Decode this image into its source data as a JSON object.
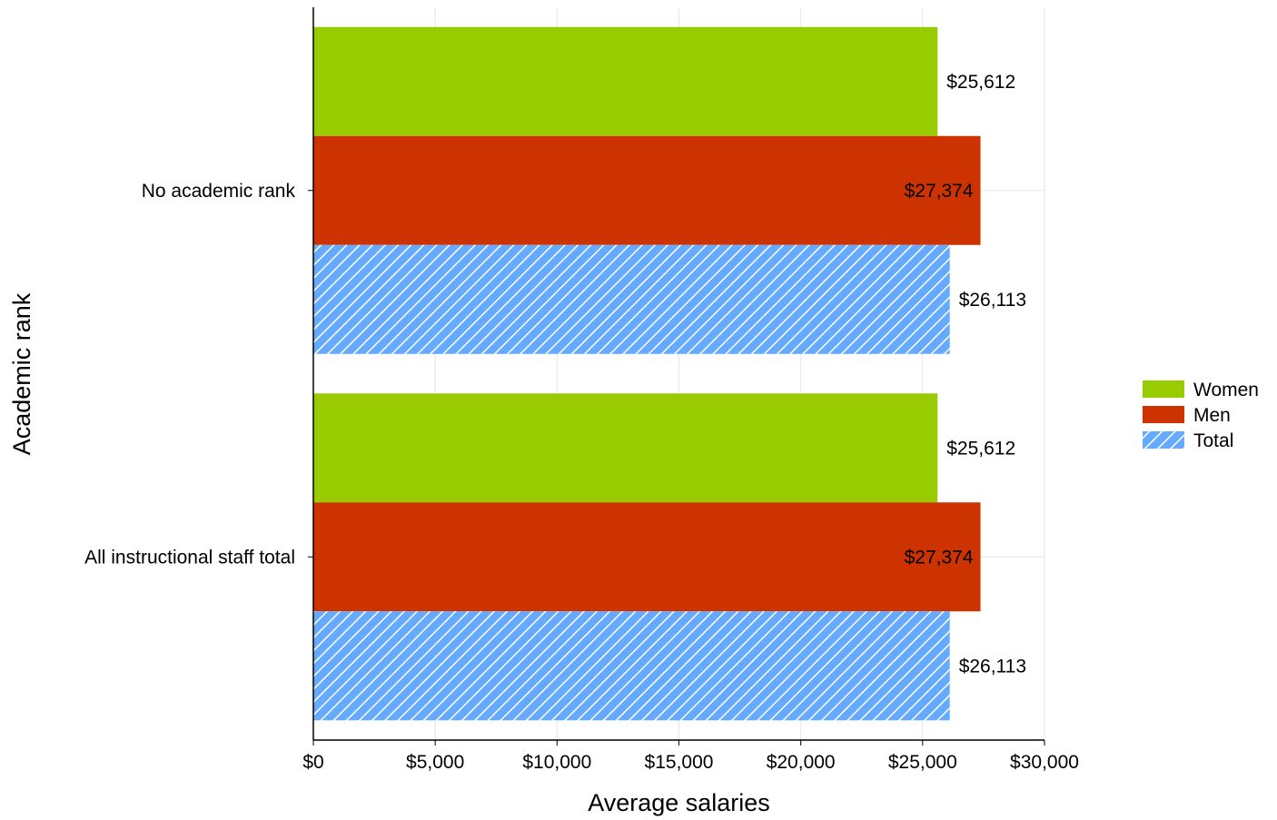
{
  "chart_data": {
    "type": "bar",
    "orientation": "horizontal",
    "categories": [
      "No academic rank",
      "All instructional staff total"
    ],
    "series": [
      {
        "name": "Women",
        "color": "#99cc00",
        "pattern": "solid",
        "values": [
          25612,
          25612
        ],
        "labels": [
          "$25,612",
          "$25,612"
        ]
      },
      {
        "name": "Men",
        "color": "#cc3300",
        "pattern": "solid",
        "values": [
          27374,
          27374
        ],
        "labels": [
          "$27,374",
          "$27,374"
        ]
      },
      {
        "name": "Total",
        "color": "#66aaff",
        "pattern": "diagonal-stripes",
        "values": [
          26113,
          26113
        ],
        "labels": [
          "$26,113",
          "$26,113"
        ]
      }
    ],
    "xlabel": "Average salaries",
    "ylabel": "Academic rank",
    "xlim": [
      0,
      30000
    ],
    "xticks": [
      0,
      5000,
      10000,
      15000,
      20000,
      25000,
      30000
    ],
    "xtick_labels": [
      "$0",
      "$5,000",
      "$10,000",
      "$15,000",
      "$20,000",
      "$25,000",
      "$30,000"
    ],
    "grid": true,
    "legend_position": "right"
  }
}
